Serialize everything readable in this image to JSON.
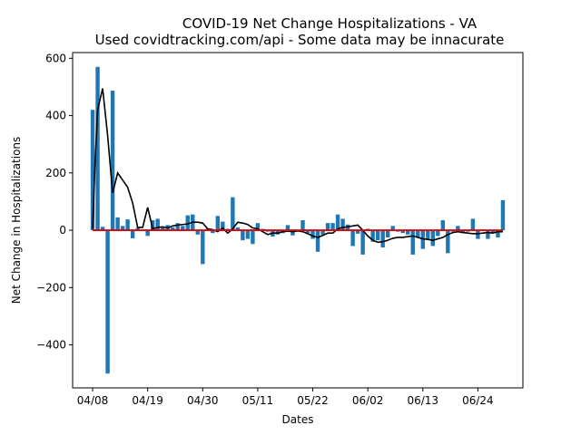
{
  "chart_data": {
    "type": "bar",
    "title": "COVID-19 Net Change Hospitalizations - VA",
    "subtitle": "Used covidtracking.com/api - Some data may be innacurate",
    "xlabel": "Dates",
    "ylabel": "Net Change in Hospitalizations",
    "ylim": [
      -550,
      620
    ],
    "y_ticks": [
      -400,
      -200,
      0,
      200,
      400,
      600
    ],
    "x_ticks": [
      "04/08",
      "04/19",
      "04/30",
      "05/11",
      "05/22",
      "06/02",
      "06/13",
      "06/24"
    ],
    "x_tick_day_index": [
      0,
      11,
      22,
      33,
      44,
      55,
      66,
      77
    ],
    "x_range_days": [
      -4,
      86
    ],
    "grid": false,
    "bar_color": "#1f77b4",
    "series": [
      {
        "type": "bar",
        "x_day_index": [
          0,
          1,
          2,
          3,
          4,
          5,
          6,
          7,
          8,
          9,
          10,
          11,
          12,
          13,
          14,
          15,
          16,
          17,
          18,
          19,
          20,
          21,
          22,
          23,
          24,
          25,
          26,
          27,
          28,
          29,
          30,
          31,
          32,
          33,
          34,
          35,
          36,
          37,
          38,
          39,
          40,
          41,
          42,
          43,
          44,
          45,
          46,
          47,
          48,
          49,
          50,
          51,
          52,
          53,
          54,
          55,
          56,
          57,
          58,
          59,
          60,
          61,
          62,
          63,
          64,
          65,
          66,
          67,
          68,
          69,
          70,
          71,
          72,
          73,
          74,
          75,
          76,
          77,
          78,
          79,
          80,
          81,
          82
        ],
        "values": [
          420,
          570,
          12,
          -500,
          487,
          45,
          15,
          38,
          -28,
          8,
          -2,
          -20,
          35,
          40,
          12,
          18,
          10,
          25,
          15,
          52,
          55,
          -15,
          -118,
          5,
          -10,
          50,
          30,
          5,
          115,
          10,
          -35,
          -30,
          -48,
          25,
          5,
          -5,
          -22,
          -15,
          -10,
          18,
          -18,
          -5,
          35,
          -10,
          -30,
          -75,
          -15,
          25,
          25,
          55,
          40,
          20,
          -55,
          -12,
          -85,
          5,
          -40,
          -35,
          -60,
          -25,
          15,
          -5,
          -10,
          -15,
          -85,
          -25,
          -65,
          -30,
          -55,
          -20,
          35,
          -80,
          -5,
          15,
          -10,
          -5,
          40,
          -30,
          -2,
          -30,
          -10,
          -25,
          105
        ]
      },
      {
        "type": "line",
        "color": "#000000",
        "x_day_index": [
          0,
          0.5,
          1,
          2,
          3,
          4,
          5,
          6,
          7,
          8,
          9,
          10,
          11,
          12,
          13,
          14,
          15,
          16,
          17,
          18,
          19,
          20,
          21,
          22,
          23,
          24,
          25,
          26,
          27,
          28,
          29,
          30,
          31,
          32,
          33,
          34,
          35,
          36,
          37,
          38,
          39,
          40,
          41,
          42,
          43,
          44,
          45,
          46,
          47,
          48,
          49,
          50,
          51,
          52,
          53,
          54,
          55,
          56,
          57,
          58,
          59,
          60,
          61,
          62,
          63,
          64,
          65,
          66,
          67,
          68,
          69,
          70,
          71,
          72,
          73,
          74,
          75,
          76,
          77,
          78,
          79,
          80,
          81,
          82
        ],
        "values": [
          5,
          240,
          420,
          495,
          330,
          130,
          200,
          175,
          150,
          95,
          10,
          10,
          80,
          5,
          10,
          12,
          8,
          15,
          18,
          20,
          22,
          28,
          28,
          25,
          5,
          2,
          -5,
          8,
          -10,
          5,
          28,
          25,
          20,
          8,
          5,
          -5,
          -15,
          -10,
          -10,
          -5,
          -3,
          -5,
          -2,
          -5,
          -12,
          -20,
          -25,
          -18,
          -10,
          -10,
          5,
          10,
          12,
          15,
          18,
          0,
          -20,
          -35,
          -42,
          -40,
          -35,
          -28,
          -25,
          -25,
          -22,
          -20,
          -25,
          -30,
          -32,
          -35,
          -30,
          -25,
          -15,
          -8,
          -5,
          -8,
          -10,
          -12,
          -12,
          -10,
          -8,
          -10,
          -5,
          -5
        ]
      },
      {
        "type": "hline",
        "color": "#e00000",
        "value": 0,
        "x_day_index": [
          0,
          82
        ]
      }
    ]
  }
}
